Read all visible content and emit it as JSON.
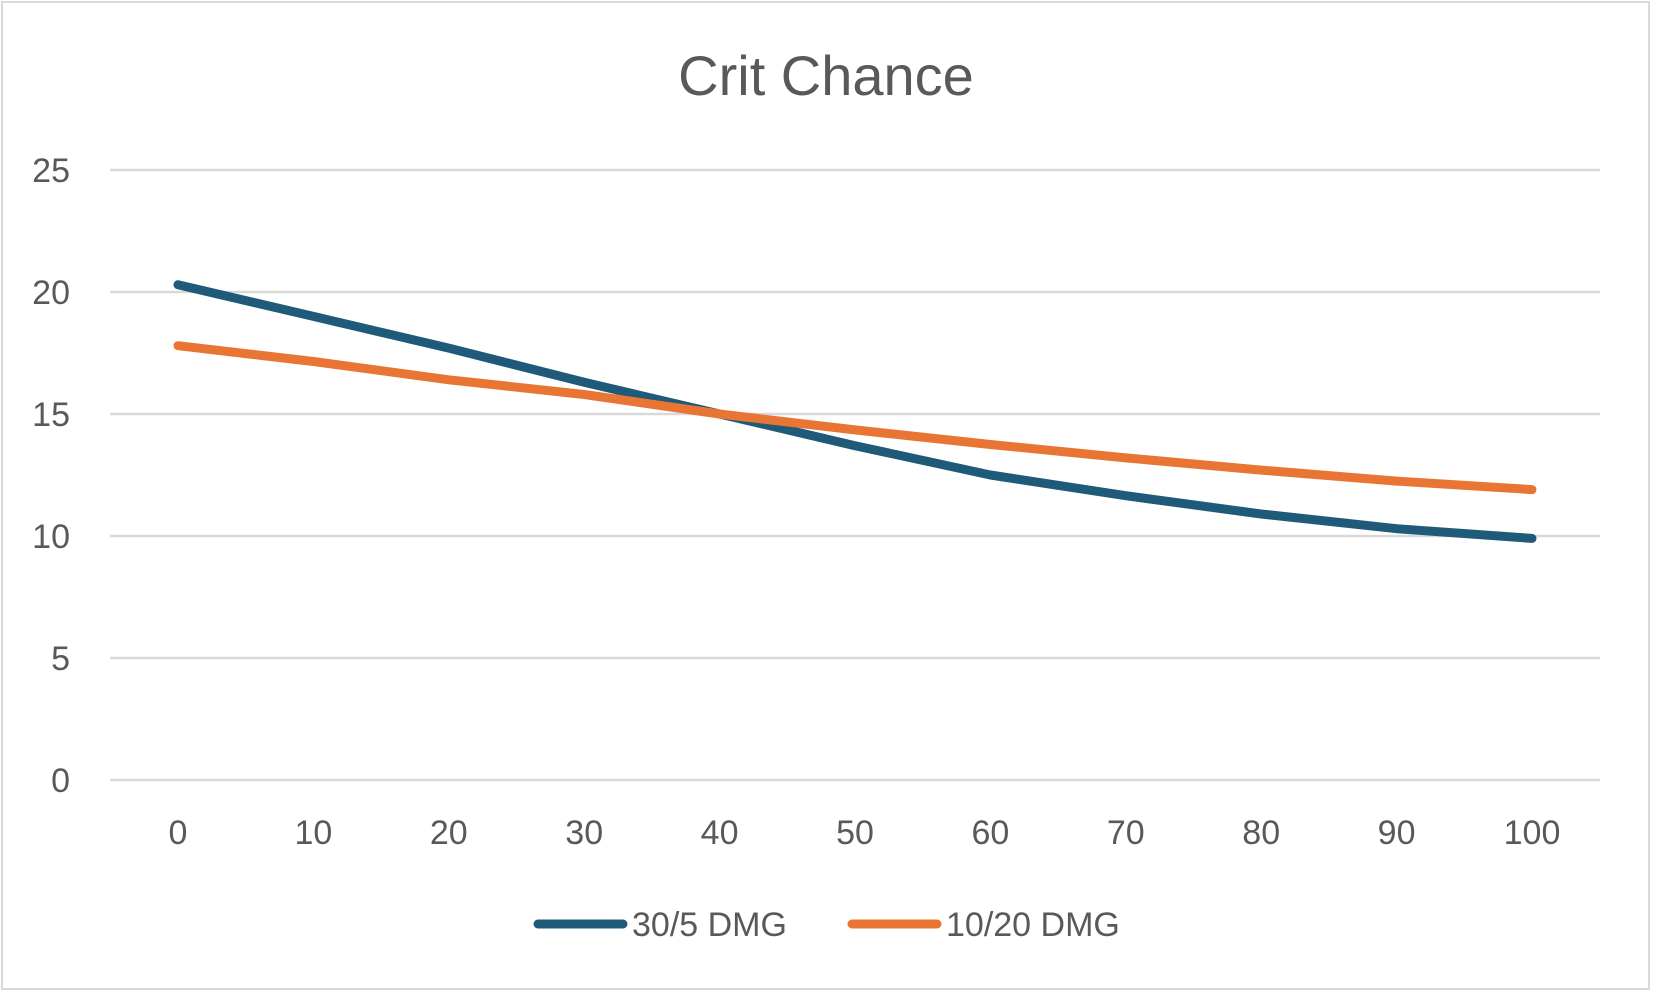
{
  "chart_data": {
    "type": "line",
    "title": "Crit Chance",
    "xlabel": "",
    "ylabel": "",
    "categories": [
      "0",
      "10",
      "20",
      "30",
      "40",
      "50",
      "60",
      "70",
      "80",
      "90",
      "100"
    ],
    "x": [
      0,
      10,
      20,
      30,
      40,
      50,
      60,
      70,
      80,
      90,
      100
    ],
    "ylim": [
      0,
      25
    ],
    "yticks": [
      "0",
      "5",
      "10",
      "15",
      "20",
      "25"
    ],
    "grid": true,
    "legend": "bottom",
    "series": [
      {
        "name": "30/5 DMG",
        "color": "#1f5b79",
        "values": [
          20.3,
          19.0,
          17.7,
          16.3,
          15.0,
          13.7,
          12.5,
          11.65,
          10.9,
          10.3,
          9.9
        ]
      },
      {
        "name": "10/20 DMG",
        "color": "#e97535",
        "values": [
          17.8,
          17.15,
          16.4,
          15.8,
          15.0,
          14.35,
          13.75,
          13.2,
          12.7,
          12.25,
          11.9
        ]
      }
    ]
  }
}
